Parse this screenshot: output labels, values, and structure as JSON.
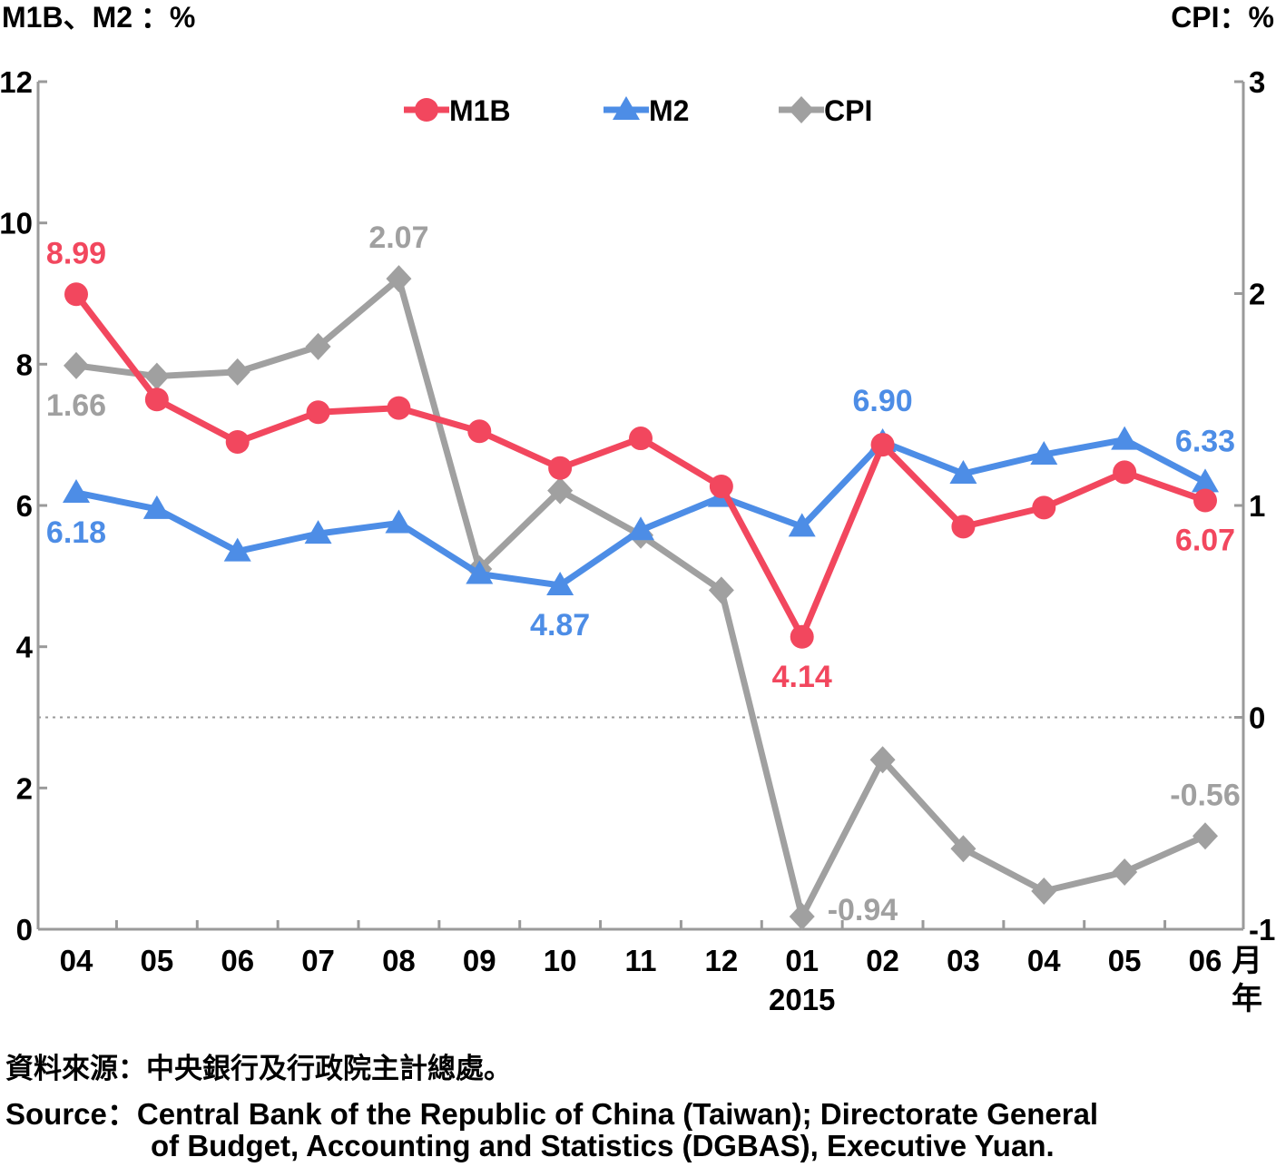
{
  "chart_data": {
    "type": "line",
    "left_axis_title": "M1B、M2 ：%",
    "right_axis_title": "CPI：%",
    "left_ylim": [
      0,
      12
    ],
    "left_ticks": [
      "0",
      "2",
      "4",
      "6",
      "8",
      "10",
      "12"
    ],
    "right_ylim": [
      -1,
      3
    ],
    "right_ticks": [
      "-1",
      "0",
      "1",
      "2",
      "3"
    ],
    "categories": [
      "04",
      "05",
      "06",
      "07",
      "08",
      "09",
      "10",
      "11",
      "12",
      "01",
      "02",
      "03",
      "04",
      "05",
      "06"
    ],
    "year_label": "2015",
    "year_label_index": 9,
    "unit_month": "月",
    "unit_year": "年",
    "legend_position": "top-center",
    "series": [
      {
        "name": "M1B",
        "axis": "left",
        "color": "#F2475E",
        "marker": "circle",
        "values": [
          8.99,
          7.5,
          6.9,
          7.32,
          7.38,
          7.05,
          6.53,
          6.95,
          6.27,
          4.14,
          6.86,
          5.7,
          5.97,
          6.47,
          6.07
        ]
      },
      {
        "name": "M2",
        "axis": "left",
        "color": "#4D8DE6",
        "marker": "triangle",
        "values": [
          6.18,
          5.95,
          5.35,
          5.6,
          5.75,
          5.03,
          4.87,
          5.65,
          6.12,
          5.7,
          6.9,
          6.45,
          6.72,
          6.93,
          6.33
        ]
      },
      {
        "name": "CPI",
        "axis": "right",
        "color": "#A0A0A0",
        "marker": "diamond",
        "values": [
          1.66,
          1.61,
          1.63,
          1.75,
          2.07,
          0.7,
          1.07,
          0.86,
          0.6,
          -0.94,
          -0.2,
          -0.62,
          -0.82,
          -0.73,
          -0.56
        ]
      }
    ],
    "annotations": [
      {
        "series": 0,
        "index": 0,
        "text": "8.99",
        "pos": "above"
      },
      {
        "series": 0,
        "index": 9,
        "text": "4.14",
        "pos": "below"
      },
      {
        "series": 0,
        "index": 14,
        "text": "6.07",
        "pos": "below"
      },
      {
        "series": 1,
        "index": 0,
        "text": "6.18",
        "pos": "below"
      },
      {
        "series": 1,
        "index": 6,
        "text": "4.87",
        "pos": "below"
      },
      {
        "series": 1,
        "index": 10,
        "text": "6.90",
        "pos": "above"
      },
      {
        "series": 1,
        "index": 14,
        "text": "6.33",
        "pos": "above"
      },
      {
        "series": 2,
        "index": 0,
        "text": "1.66",
        "pos": "below"
      },
      {
        "series": 2,
        "index": 4,
        "text": "2.07",
        "pos": "above"
      },
      {
        "series": 2,
        "index": 9,
        "text": "-0.94",
        "pos": "right"
      },
      {
        "series": 2,
        "index": 14,
        "text": "-0.56",
        "pos": "above"
      }
    ],
    "reference_line": {
      "axis": "right",
      "value": 0,
      "style": "dotted"
    }
  },
  "source": {
    "zh": "資料來源：中央銀行及行政院主計總處。",
    "en_line1": "Source：Central Bank of the Republic of China (Taiwan); Directorate General",
    "en_line2": "of Budget, Accounting and Statistics (DGBAS), Executive Yuan."
  }
}
